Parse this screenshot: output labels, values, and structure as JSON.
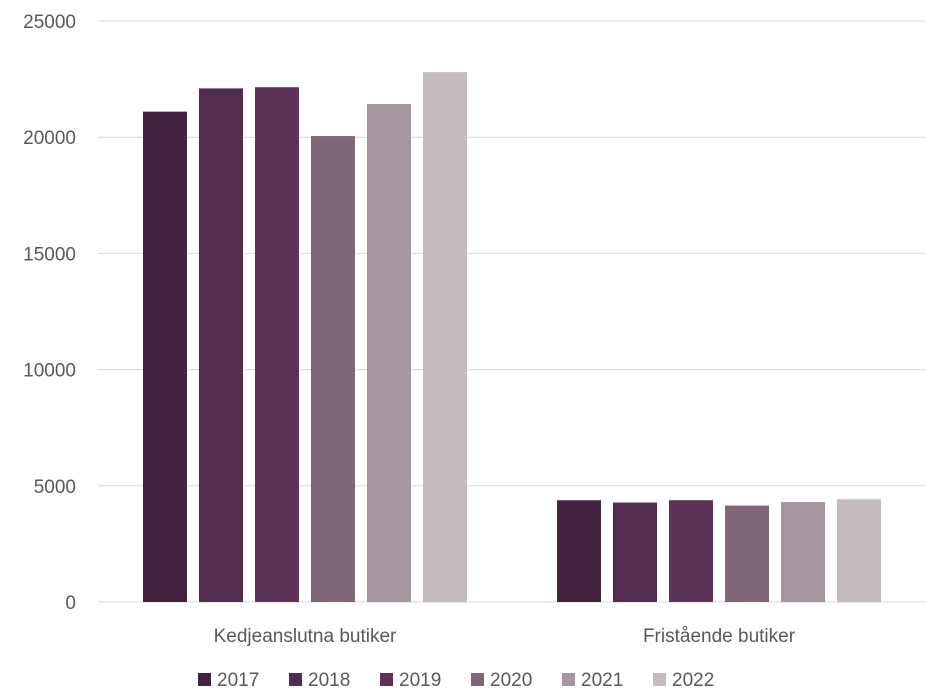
{
  "chart_data": {
    "type": "bar",
    "title": "",
    "xlabel": "",
    "ylabel": "",
    "categories": [
      "Kedjeanslutna butiker",
      "Fristående butiker"
    ],
    "ylim": [
      0,
      25000
    ],
    "yticks": [
      0,
      5000,
      10000,
      15000,
      20000,
      25000
    ],
    "ytick_labels": [
      "0",
      "5000",
      "10000",
      "15000",
      "20000",
      "25000"
    ],
    "grid": true,
    "legend_position": "bottom",
    "series": [
      {
        "name": "2017",
        "color": "#44233E",
        "values": [
          21100,
          4380
        ]
      },
      {
        "name": "2018",
        "color": "#522B4D",
        "values": [
          22100,
          4280
        ]
      },
      {
        "name": "2019",
        "color": "#5E3157",
        "values": [
          22150,
          4380
        ]
      },
      {
        "name": "2020",
        "color": "#7E6878",
        "values": [
          20050,
          4150
        ]
      },
      {
        "name": "2021",
        "color": "#A4979F",
        "values": [
          21430,
          4300
        ]
      },
      {
        "name": "2022",
        "color": "#C4BBC1",
        "values": [
          22800,
          4420
        ]
      }
    ]
  }
}
